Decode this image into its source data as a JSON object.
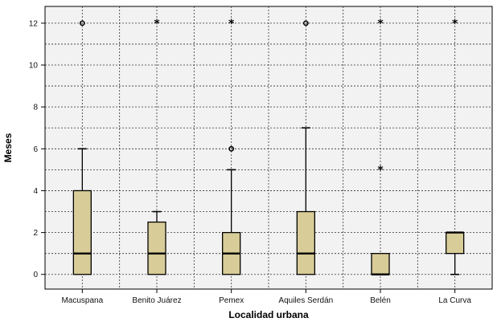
{
  "chart_data": {
    "type": "boxplot",
    "xlabel": "Localidad urbana",
    "ylabel": "Meses",
    "ylim": [
      -0.7,
      12.8
    ],
    "yticks": [
      0,
      2,
      4,
      6,
      8,
      10,
      12
    ],
    "grid": true,
    "box_color": "#d8cc98",
    "plot_background": "#f2f2f2",
    "categories": [
      "Macuspana",
      "Benito Juárez",
      "Pemex",
      "Aquiles Serdán",
      "Belén",
      "La Curva"
    ],
    "boxes": [
      {
        "category": "Macuspana",
        "min": 0,
        "q1": 0,
        "median": 1,
        "q3": 4,
        "max": 6,
        "outliers": [
          {
            "value": 12,
            "marker": "circle"
          }
        ]
      },
      {
        "category": "Benito Juárez",
        "min": 0,
        "q1": 0,
        "median": 1,
        "q3": 2.5,
        "max": 3,
        "outliers": [
          {
            "value": 12,
            "marker": "star"
          }
        ]
      },
      {
        "category": "Pemex",
        "min": 0,
        "q1": 0,
        "median": 1,
        "q3": 2,
        "max": 5,
        "outliers": [
          {
            "value": 6,
            "marker": "circle"
          },
          {
            "value": 12,
            "marker": "star"
          }
        ]
      },
      {
        "category": "Aquiles Serdán",
        "min": 0,
        "q1": 0,
        "median": 1,
        "q3": 3,
        "max": 7,
        "outliers": [
          {
            "value": 12,
            "marker": "circle"
          }
        ]
      },
      {
        "category": "Belén",
        "min": 0,
        "q1": 0,
        "median": 0,
        "q3": 1,
        "max": 1,
        "outliers": [
          {
            "value": 5,
            "marker": "star"
          },
          {
            "value": 12,
            "marker": "star"
          }
        ]
      },
      {
        "category": "La Curva",
        "min": 0,
        "q1": 1,
        "median": 2,
        "q3": 2,
        "max": 2,
        "outliers": [
          {
            "value": 12,
            "marker": "star"
          }
        ]
      }
    ]
  }
}
